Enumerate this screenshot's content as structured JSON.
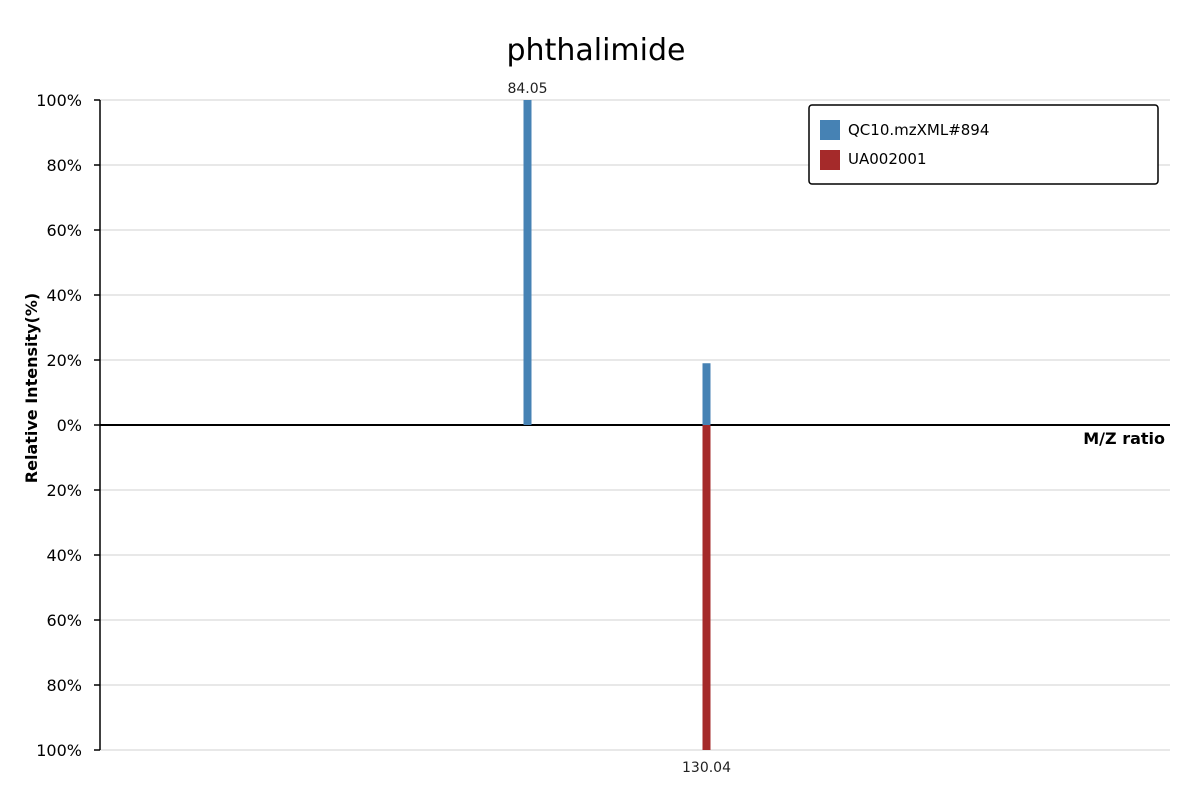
{
  "chart_data": {
    "type": "bar",
    "title": "phthalimide",
    "xlabel": "M/Z ratio",
    "ylabel": "Relative Intensity(%)",
    "ylim": [
      -100,
      100
    ],
    "y_ticks": [
      "100%",
      "80%",
      "60%",
      "40%",
      "20%",
      "0%",
      "20%",
      "40%",
      "60%",
      "80%",
      "100%"
    ],
    "grid": true,
    "legend_position": "top-right",
    "series": [
      {
        "name": "QC10.mzXML#894",
        "color": "#4682b4",
        "direction": "up",
        "peaks": [
          {
            "mz": 84.05,
            "intensity": 100,
            "label": "84.05"
          },
          {
            "mz": 130.04,
            "intensity": 19
          }
        ]
      },
      {
        "name": "UA002001",
        "color": "#a52a2a",
        "direction": "down",
        "peaks": [
          {
            "mz": 130.04,
            "intensity": 100,
            "label": "130.04"
          }
        ]
      }
    ]
  }
}
